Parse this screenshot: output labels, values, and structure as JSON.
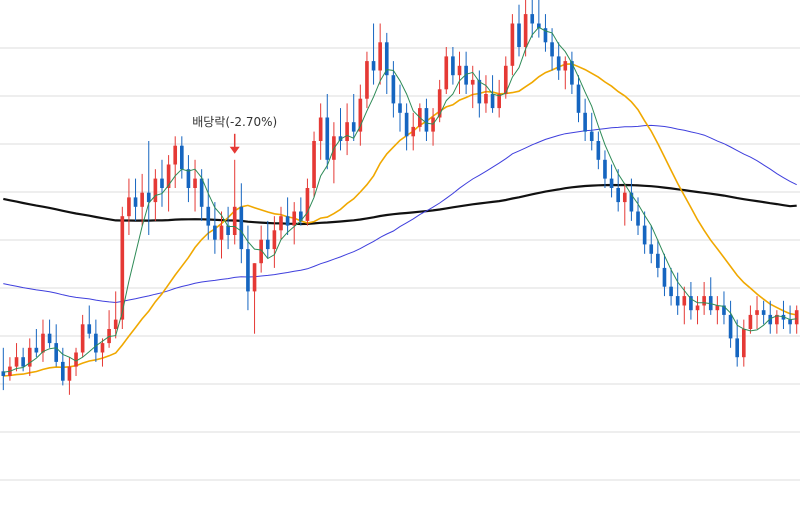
{
  "chart_data": {
    "type": "candlestick",
    "grid": {
      "horizontal": true,
      "vertical": false
    },
    "ylim": [
      0,
      100
    ],
    "colors": {
      "up": "#e53935",
      "down": "#1565c0",
      "ma_short": "#2e8b57",
      "ma_20": "#f0a800",
      "ma_60": "#3f3fdd",
      "ma_120": "#111111",
      "annotation": "#e53935"
    },
    "annotation": {
      "label": "배당락(-2.70%)",
      "candle_index": 35,
      "arrow": "down"
    },
    "candles": [
      {
        "o": 21,
        "h": 26,
        "l": 17,
        "c": 20
      },
      {
        "o": 20,
        "h": 24,
        "l": 19,
        "c": 22
      },
      {
        "o": 22,
        "h": 27,
        "l": 21,
        "c": 24
      },
      {
        "o": 24,
        "h": 26,
        "l": 21,
        "c": 22
      },
      {
        "o": 22,
        "h": 28,
        "l": 20,
        "c": 26
      },
      {
        "o": 26,
        "h": 30,
        "l": 24,
        "c": 25
      },
      {
        "o": 25,
        "h": 32,
        "l": 23,
        "c": 29
      },
      {
        "o": 29,
        "h": 32,
        "l": 26,
        "c": 27
      },
      {
        "o": 27,
        "h": 31,
        "l": 22,
        "c": 23
      },
      {
        "o": 23,
        "h": 26,
        "l": 18,
        "c": 19
      },
      {
        "o": 19,
        "h": 24,
        "l": 16,
        "c": 22
      },
      {
        "o": 22,
        "h": 26,
        "l": 20,
        "c": 25
      },
      {
        "o": 25,
        "h": 33,
        "l": 24,
        "c": 31
      },
      {
        "o": 31,
        "h": 35,
        "l": 28,
        "c": 29
      },
      {
        "o": 29,
        "h": 32,
        "l": 23,
        "c": 25
      },
      {
        "o": 25,
        "h": 28,
        "l": 22,
        "c": 27
      },
      {
        "o": 27,
        "h": 34,
        "l": 26,
        "c": 30
      },
      {
        "o": 30,
        "h": 38,
        "l": 28,
        "c": 32
      },
      {
        "o": 32,
        "h": 56,
        "l": 30,
        "c": 54
      },
      {
        "o": 54,
        "h": 62,
        "l": 50,
        "c": 58
      },
      {
        "o": 58,
        "h": 62,
        "l": 53,
        "c": 56
      },
      {
        "o": 56,
        "h": 63,
        "l": 52,
        "c": 59
      },
      {
        "o": 59,
        "h": 70,
        "l": 50,
        "c": 57
      },
      {
        "o": 57,
        "h": 64,
        "l": 53,
        "c": 62
      },
      {
        "o": 62,
        "h": 66,
        "l": 56,
        "c": 60
      },
      {
        "o": 60,
        "h": 67,
        "l": 55,
        "c": 65
      },
      {
        "o": 65,
        "h": 71,
        "l": 60,
        "c": 69
      },
      {
        "o": 69,
        "h": 71,
        "l": 62,
        "c": 64
      },
      {
        "o": 64,
        "h": 67,
        "l": 57,
        "c": 60
      },
      {
        "o": 60,
        "h": 66,
        "l": 55,
        "c": 62
      },
      {
        "o": 62,
        "h": 64,
        "l": 53,
        "c": 56
      },
      {
        "o": 56,
        "h": 62,
        "l": 49,
        "c": 52
      },
      {
        "o": 52,
        "h": 57,
        "l": 46,
        "c": 49
      },
      {
        "o": 49,
        "h": 55,
        "l": 45,
        "c": 52
      },
      {
        "o": 52,
        "h": 56,
        "l": 47,
        "c": 50
      },
      {
        "o": 50,
        "h": 66,
        "l": 48,
        "c": 56
      },
      {
        "o": 56,
        "h": 61,
        "l": 44,
        "c": 47
      },
      {
        "o": 47,
        "h": 52,
        "l": 34,
        "c": 38
      },
      {
        "o": 38,
        "h": 44,
        "l": 29,
        "c": 44
      },
      {
        "o": 44,
        "h": 52,
        "l": 42,
        "c": 49
      },
      {
        "o": 49,
        "h": 53,
        "l": 45,
        "c": 47
      },
      {
        "o": 47,
        "h": 54,
        "l": 43,
        "c": 51
      },
      {
        "o": 51,
        "h": 56,
        "l": 49,
        "c": 54
      },
      {
        "o": 54,
        "h": 58,
        "l": 50,
        "c": 52
      },
      {
        "o": 52,
        "h": 57,
        "l": 48,
        "c": 55
      },
      {
        "o": 55,
        "h": 58,
        "l": 52,
        "c": 53
      },
      {
        "o": 53,
        "h": 62,
        "l": 52,
        "c": 60
      },
      {
        "o": 60,
        "h": 72,
        "l": 58,
        "c": 70
      },
      {
        "o": 70,
        "h": 78,
        "l": 66,
        "c": 75
      },
      {
        "o": 75,
        "h": 80,
        "l": 64,
        "c": 66
      },
      {
        "o": 66,
        "h": 74,
        "l": 61,
        "c": 71
      },
      {
        "o": 71,
        "h": 77,
        "l": 68,
        "c": 70
      },
      {
        "o": 70,
        "h": 78,
        "l": 67,
        "c": 74
      },
      {
        "o": 74,
        "h": 80,
        "l": 70,
        "c": 72
      },
      {
        "o": 72,
        "h": 82,
        "l": 69,
        "c": 79
      },
      {
        "o": 79,
        "h": 89,
        "l": 77,
        "c": 87
      },
      {
        "o": 87,
        "h": 95,
        "l": 82,
        "c": 85
      },
      {
        "o": 85,
        "h": 95,
        "l": 82,
        "c": 91
      },
      {
        "o": 91,
        "h": 93,
        "l": 80,
        "c": 84
      },
      {
        "o": 84,
        "h": 87,
        "l": 75,
        "c": 78
      },
      {
        "o": 78,
        "h": 82,
        "l": 72,
        "c": 76
      },
      {
        "o": 76,
        "h": 78,
        "l": 68,
        "c": 71
      },
      {
        "o": 71,
        "h": 76,
        "l": 68,
        "c": 73
      },
      {
        "o": 73,
        "h": 78,
        "l": 72,
        "c": 77
      },
      {
        "o": 77,
        "h": 79,
        "l": 70,
        "c": 72
      },
      {
        "o": 72,
        "h": 77,
        "l": 69,
        "c": 75
      },
      {
        "o": 75,
        "h": 83,
        "l": 74,
        "c": 81
      },
      {
        "o": 81,
        "h": 90,
        "l": 80,
        "c": 88
      },
      {
        "o": 88,
        "h": 90,
        "l": 82,
        "c": 84
      },
      {
        "o": 84,
        "h": 89,
        "l": 80,
        "c": 86
      },
      {
        "o": 86,
        "h": 89,
        "l": 80,
        "c": 82
      },
      {
        "o": 82,
        "h": 86,
        "l": 77,
        "c": 83
      },
      {
        "o": 83,
        "h": 85,
        "l": 75,
        "c": 78
      },
      {
        "o": 78,
        "h": 84,
        "l": 76,
        "c": 80
      },
      {
        "o": 80,
        "h": 84,
        "l": 76,
        "c": 77
      },
      {
        "o": 77,
        "h": 83,
        "l": 75,
        "c": 80
      },
      {
        "o": 80,
        "h": 88,
        "l": 79,
        "c": 86
      },
      {
        "o": 86,
        "h": 97,
        "l": 84,
        "c": 95
      },
      {
        "o": 95,
        "h": 99,
        "l": 88,
        "c": 90
      },
      {
        "o": 90,
        "h": 100,
        "l": 88,
        "c": 97
      },
      {
        "o": 97,
        "h": 101,
        "l": 92,
        "c": 95
      },
      {
        "o": 95,
        "h": 102,
        "l": 92,
        "c": 94
      },
      {
        "o": 94,
        "h": 97,
        "l": 89,
        "c": 91
      },
      {
        "o": 91,
        "h": 94,
        "l": 85,
        "c": 88
      },
      {
        "o": 88,
        "h": 91,
        "l": 83,
        "c": 85
      },
      {
        "o": 85,
        "h": 88,
        "l": 81,
        "c": 87
      },
      {
        "o": 87,
        "h": 89,
        "l": 80,
        "c": 82
      },
      {
        "o": 82,
        "h": 84,
        "l": 74,
        "c": 76
      },
      {
        "o": 76,
        "h": 79,
        "l": 70,
        "c": 72
      },
      {
        "o": 72,
        "h": 76,
        "l": 68,
        "c": 70
      },
      {
        "o": 70,
        "h": 72,
        "l": 64,
        "c": 66
      },
      {
        "o": 66,
        "h": 68,
        "l": 60,
        "c": 62
      },
      {
        "o": 62,
        "h": 65,
        "l": 58,
        "c": 60
      },
      {
        "o": 60,
        "h": 64,
        "l": 55,
        "c": 57
      },
      {
        "o": 57,
        "h": 61,
        "l": 52,
        "c": 59
      },
      {
        "o": 59,
        "h": 62,
        "l": 53,
        "c": 55
      },
      {
        "o": 55,
        "h": 58,
        "l": 50,
        "c": 52
      },
      {
        "o": 52,
        "h": 55,
        "l": 46,
        "c": 48
      },
      {
        "o": 48,
        "h": 52,
        "l": 44,
        "c": 46
      },
      {
        "o": 46,
        "h": 49,
        "l": 41,
        "c": 43
      },
      {
        "o": 43,
        "h": 46,
        "l": 37,
        "c": 39
      },
      {
        "o": 39,
        "h": 43,
        "l": 35,
        "c": 37
      },
      {
        "o": 37,
        "h": 42,
        "l": 33,
        "c": 35
      },
      {
        "o": 35,
        "h": 39,
        "l": 31,
        "c": 37
      },
      {
        "o": 37,
        "h": 40,
        "l": 32,
        "c": 34
      },
      {
        "o": 34,
        "h": 37,
        "l": 31,
        "c": 35
      },
      {
        "o": 35,
        "h": 40,
        "l": 33,
        "c": 37
      },
      {
        "o": 37,
        "h": 41,
        "l": 33,
        "c": 34
      },
      {
        "o": 34,
        "h": 37,
        "l": 31,
        "c": 35
      },
      {
        "o": 35,
        "h": 38,
        "l": 31,
        "c": 33
      },
      {
        "o": 33,
        "h": 36,
        "l": 26,
        "c": 28
      },
      {
        "o": 28,
        "h": 32,
        "l": 22,
        "c": 24
      },
      {
        "o": 24,
        "h": 32,
        "l": 22,
        "c": 30
      },
      {
        "o": 30,
        "h": 35,
        "l": 29,
        "c": 33
      },
      {
        "o": 33,
        "h": 37,
        "l": 30,
        "c": 34
      },
      {
        "o": 34,
        "h": 36,
        "l": 31,
        "c": 33
      },
      {
        "o": 33,
        "h": 36,
        "l": 29,
        "c": 31
      },
      {
        "o": 31,
        "h": 34,
        "l": 29,
        "c": 33
      },
      {
        "o": 33,
        "h": 36,
        "l": 30,
        "c": 32
      },
      {
        "o": 32,
        "h": 35,
        "l": 29,
        "c": 31
      },
      {
        "o": 31,
        "h": 35,
        "l": 29,
        "c": 34
      }
    ]
  }
}
